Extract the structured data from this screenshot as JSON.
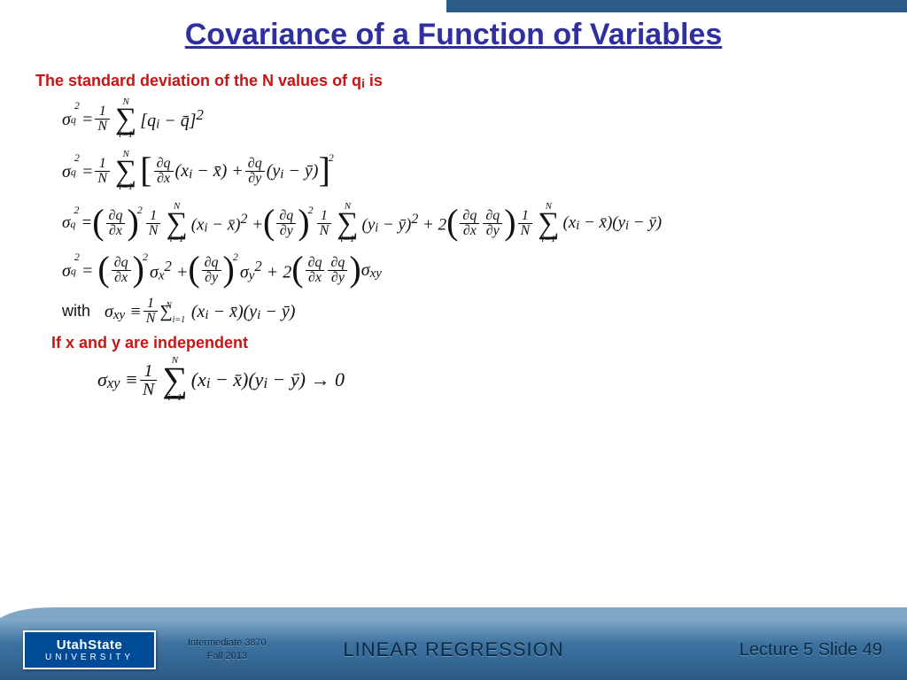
{
  "colors": {
    "title": "#2f2fa0",
    "accent_bar": "#2b5b88",
    "red": "#c41616",
    "footer_grad_top": "#7fa7c6",
    "footer_grad_bottom": "#2b5b88",
    "logo_bg": "#004b98",
    "background": "#ffffff"
  },
  "title": "Covariance of a Function of Variables",
  "heading1_pre": "The standard deviation of the N values of q",
  "heading1_sub": "i",
  "heading1_post": " is",
  "heading2": "If x and y are independent",
  "eq": {
    "sigma_q_sq": "σ",
    "q": "q",
    "two": "2",
    "eq": " = ",
    "one": "1",
    "N": "N",
    "sum_upper": "N",
    "sum_lower": "i=1",
    "row1_tail": "[q<sub>i</sub> − q̄]<sup>2</sup>",
    "row2_inner1": "(x<sub>i</sub> − x̄) + ",
    "row2_inner2": "(y<sub>i</sub> − ȳ)",
    "partial_qx_n": "∂q",
    "partial_qx_d": "∂x",
    "partial_qy_n": "∂q",
    "partial_qy_d": "∂y",
    "row3_a": "(x<sub>i</sub> − x̄)<sup>2</sup> + ",
    "row3_b": "(y<sub>i</sub> − ȳ)<sup>2</sup> + 2",
    "row3_c": "(x<sub>i</sub> − x̄)(y<sub>i</sub> − ȳ)",
    "row4_sx": " σ<sub>x</sub><sup>2</sup> + ",
    "row4_sy": " σ<sub>y</sub><sup>2</sup> + 2",
    "row4_sxy": " σ<sub>xy</sub>",
    "with": "with",
    "row5_lead": "σ<sub>xy</sub>  ≡ ",
    "row5_tail": "(x<sub>i</sub> − x̄)(y<sub>i</sub> − ȳ)",
    "row6_lead": "σ<sub>xy</sub> ≡ ",
    "row6_tail": "(x<sub>i</sub> − x̄)(y<sub>i</sub> − ȳ) → 0"
  },
  "footer": {
    "logo_line1": "UtahState",
    "logo_line2": "UNIVERSITY",
    "course_line1": "Intermediate  3870",
    "course_line2": "Fall 2013",
    "center": "LINEAR REGRESSION",
    "lecture": "Lecture  5   Slide  49"
  }
}
